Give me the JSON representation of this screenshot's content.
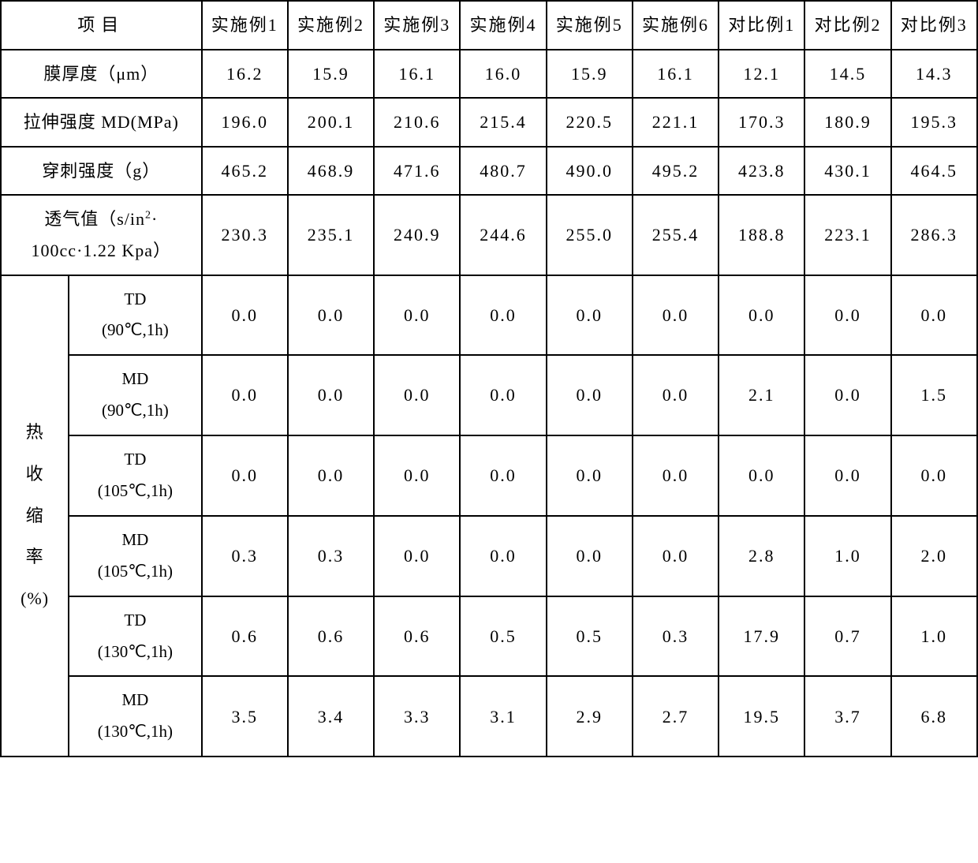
{
  "header": {
    "project": "项目",
    "cols": [
      "实施例1",
      "实施例2",
      "实施例3",
      "实施例4",
      "实施例5",
      "实施例6",
      "对比例1",
      "对比例2",
      "对比例3"
    ]
  },
  "rows": {
    "thickness": {
      "label": "膜厚度（μm）",
      "vals": [
        "16.2",
        "15.9",
        "16.1",
        "16.0",
        "15.9",
        "16.1",
        "12.1",
        "14.5",
        "14.3"
      ]
    },
    "tensile": {
      "label": "拉伸强度 MD(MPa)",
      "vals": [
        "196.0",
        "200.1",
        "210.6",
        "215.4",
        "220.5",
        "221.1",
        "170.3",
        "180.9",
        "195.3"
      ]
    },
    "puncture": {
      "label": "穿刺强度（g）",
      "vals": [
        "465.2",
        "468.9",
        "471.6",
        "480.7",
        "490.0",
        "495.2",
        "423.8",
        "430.1",
        "464.5"
      ]
    },
    "permeability": {
      "label_line1": "透气值（s/in",
      "label_sup": "2",
      "label_line2": "·",
      "label_line3": "100cc·1.22 Kpa）",
      "vals": [
        "230.3",
        "235.1",
        "240.9",
        "244.6",
        "255.0",
        "255.4",
        "188.8",
        "223.1",
        "286.3"
      ]
    }
  },
  "shrink": {
    "group_label": "热收缩率(%)",
    "sub": [
      {
        "l": "TD",
        "c": "(90℃,1h)",
        "v": [
          "0.0",
          "0.0",
          "0.0",
          "0.0",
          "0.0",
          "0.0",
          "0.0",
          "0.0",
          "0.0"
        ]
      },
      {
        "l": "MD",
        "c": "(90℃,1h)",
        "v": [
          "0.0",
          "0.0",
          "0.0",
          "0.0",
          "0.0",
          "0.0",
          "2.1",
          "0.0",
          "1.5"
        ]
      },
      {
        "l": "TD",
        "c": "(105℃,1h)",
        "v": [
          "0.0",
          "0.0",
          "0.0",
          "0.0",
          "0.0",
          "0.0",
          "0.0",
          "0.0",
          "0.0"
        ]
      },
      {
        "l": "MD",
        "c": "(105℃,1h)",
        "v": [
          "0.3",
          "0.3",
          "0.0",
          "0.0",
          "0.0",
          "0.0",
          "2.8",
          "1.0",
          "2.0"
        ]
      },
      {
        "l": "TD",
        "c": "(130℃,1h)",
        "v": [
          "0.6",
          "0.6",
          "0.6",
          "0.5",
          "0.5",
          "0.3",
          "17.9",
          "0.7",
          "1.0"
        ]
      },
      {
        "l": "MD",
        "c": "(130℃,1h)",
        "v": [
          "3.5",
          "3.4",
          "3.3",
          "3.1",
          "2.9",
          "2.7",
          "19.5",
          "3.7",
          "6.8"
        ]
      }
    ]
  },
  "style": {
    "border_color": "#000000",
    "background": "#ffffff",
    "text_color": "#000000",
    "font_family": "SimSun",
    "base_fontsize": 22
  }
}
